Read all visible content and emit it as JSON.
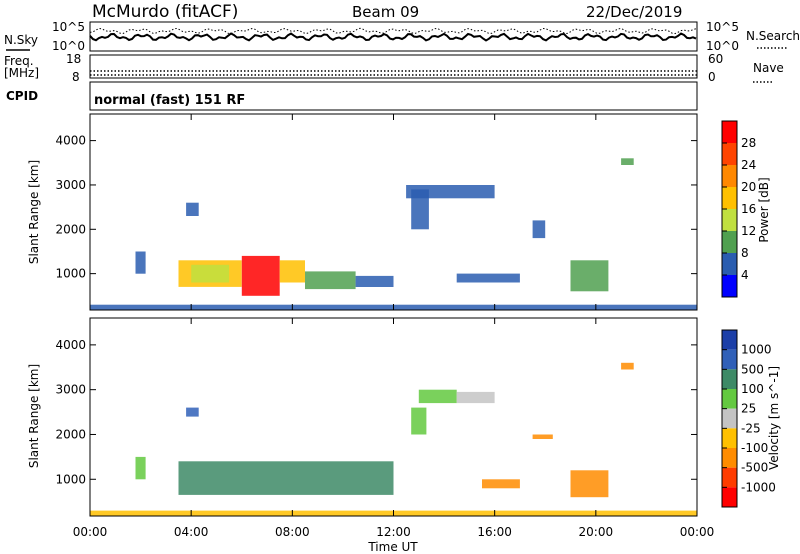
{
  "header": {
    "station": "McMurdo (fitACF)",
    "beam": "Beam 09",
    "date": "22/Dec/2019"
  },
  "status": {
    "nsky_label": "N.Sky",
    "nsearch_label": "N.Search",
    "nsky_ticks": [
      "10^5",
      "10^0"
    ],
    "nsearch_ticks": [
      "10^5",
      "10^0"
    ],
    "freq_label": "Freq.",
    "freq_unit": "[MHz]",
    "freq_ticks": [
      "18",
      "8"
    ],
    "nave_label": "Nave",
    "nave_ticks": [
      "60",
      "0"
    ],
    "cpid_label": "CPID",
    "cpid_text": "normal (fast) 151 RF"
  },
  "chart_data": [
    {
      "type": "heatmap",
      "name": "power",
      "ylabel": "Slant Range [km]",
      "ylim": [
        180,
        4600
      ],
      "yticks": [
        1000,
        2000,
        3000,
        4000
      ],
      "colorbar_label": "Power [dB]",
      "colorbar_ticks": [
        "28",
        "24",
        "20",
        "16",
        "12",
        "8",
        "4"
      ],
      "colorbar_colors": [
        "#ff0000",
        "#ff4400",
        "#ff8800",
        "#ffc000",
        "#c0e040",
        "#50a050",
        "#2a5db0",
        "#0000ff"
      ],
      "xlim": [
        0,
        24
      ],
      "patches": [
        {
          "t0": 3.5,
          "t1": 6.0,
          "r0": 700,
          "r1": 1300,
          "level": 3
        },
        {
          "t0": 4.0,
          "t1": 5.5,
          "r0": 800,
          "r1": 1200,
          "level": 4
        },
        {
          "t0": 6.0,
          "t1": 7.5,
          "r0": 500,
          "r1": 1400,
          "level": 0
        },
        {
          "t0": 7.5,
          "t1": 8.5,
          "r0": 800,
          "r1": 1300,
          "level": 3
        },
        {
          "t0": 8.5,
          "t1": 10.5,
          "r0": 650,
          "r1": 1050,
          "level": 5
        },
        {
          "t0": 10.5,
          "t1": 12.0,
          "r0": 700,
          "r1": 950,
          "level": 6
        },
        {
          "t0": 12.5,
          "t1": 16.0,
          "r0": 2700,
          "r1": 3000,
          "level": 6
        },
        {
          "t0": 12.7,
          "t1": 13.4,
          "r0": 2000,
          "r1": 2900,
          "level": 6
        },
        {
          "t0": 14.5,
          "t1": 17.0,
          "r0": 800,
          "r1": 1000,
          "level": 6
        },
        {
          "t0": 19.0,
          "t1": 20.5,
          "r0": 600,
          "r1": 1300,
          "level": 5
        },
        {
          "t0": 21.0,
          "t1": 21.5,
          "r0": 3450,
          "r1": 3600,
          "level": 5
        },
        {
          "t0": 1.8,
          "t1": 2.2,
          "r0": 1000,
          "r1": 1500,
          "level": 6
        },
        {
          "t0": 3.8,
          "t1": 4.3,
          "r0": 2300,
          "r1": 2600,
          "level": 6
        },
        {
          "t0": 17.5,
          "t1": 18.0,
          "r0": 1800,
          "r1": 2200,
          "level": 6
        },
        {
          "t0": 0.0,
          "t1": 24.0,
          "r0": 180,
          "r1": 300,
          "level": 6
        }
      ]
    },
    {
      "type": "heatmap",
      "name": "velocity",
      "ylabel": "Slant Range [km]",
      "ylim": [
        180,
        4600
      ],
      "yticks": [
        1000,
        2000,
        3000,
        4000
      ],
      "colorbar_label": "Velocity [m s^-1]",
      "colorbar_ticks": [
        "1000",
        "500",
        "100",
        "25",
        "-25",
        "-100",
        "-500",
        "-1000"
      ],
      "colorbar_colors": [
        "#1c3fa8",
        "#3060b8",
        "#3d8a66",
        "#63c940",
        "#c4c4c4",
        "#ffc000",
        "#ff8c00",
        "#ff3c00",
        "#ff0000"
      ],
      "xlim": [
        0,
        24
      ],
      "patches": [
        {
          "t0": 3.5,
          "t1": 12.0,
          "r0": 650,
          "r1": 1400,
          "level": 2
        },
        {
          "t0": 13.0,
          "t1": 14.5,
          "r0": 2700,
          "r1": 3000,
          "level": 3
        },
        {
          "t0": 14.5,
          "t1": 16.0,
          "r0": 2700,
          "r1": 2950,
          "level": 4
        },
        {
          "t0": 12.7,
          "t1": 13.3,
          "r0": 2000,
          "r1": 2600,
          "level": 3
        },
        {
          "t0": 15.5,
          "t1": 17.0,
          "r0": 800,
          "r1": 1000,
          "level": 6
        },
        {
          "t0": 17.5,
          "t1": 18.3,
          "r0": 1900,
          "r1": 2000,
          "level": 6
        },
        {
          "t0": 19.0,
          "t1": 20.5,
          "r0": 600,
          "r1": 1200,
          "level": 6
        },
        {
          "t0": 21.0,
          "t1": 21.5,
          "r0": 3450,
          "r1": 3600,
          "level": 6
        },
        {
          "t0": 3.8,
          "t1": 4.3,
          "r0": 2400,
          "r1": 2600,
          "level": 1
        },
        {
          "t0": 1.8,
          "t1": 2.2,
          "r0": 1000,
          "r1": 1500,
          "level": 3
        },
        {
          "t0": 0.0,
          "t1": 24.0,
          "r0": 180,
          "r1": 300,
          "level": 5
        }
      ]
    }
  ],
  "xaxis": {
    "ticks": [
      "00:00",
      "04:00",
      "08:00",
      "12:00",
      "16:00",
      "20:00",
      "00:00"
    ],
    "label": "Time UT"
  }
}
